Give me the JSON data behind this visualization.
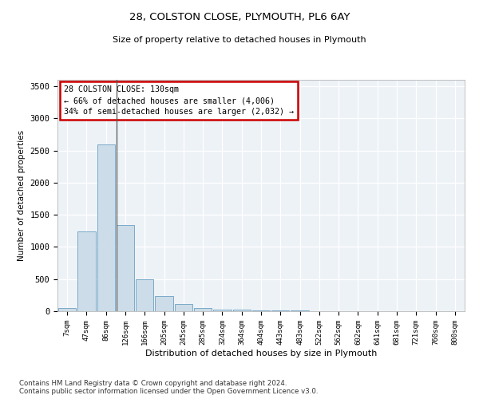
{
  "title1": "28, COLSTON CLOSE, PLYMOUTH, PL6 6AY",
  "title2": "Size of property relative to detached houses in Plymouth",
  "xlabel": "Distribution of detached houses by size in Plymouth",
  "ylabel": "Number of detached properties",
  "bar_color": "#ccdce8",
  "bar_edge_color": "#7aaac8",
  "background_color": "#edf2f7",
  "annotation_box_color": "#cc0000",
  "annotation_line1": "28 COLSTON CLOSE: 130sqm",
  "annotation_line2": "← 66% of detached houses are smaller (4,006)",
  "annotation_line3": "34% of semi-detached houses are larger (2,032) →",
  "footer1": "Contains HM Land Registry data © Crown copyright and database right 2024.",
  "footer2": "Contains public sector information licensed under the Open Government Licence v3.0.",
  "categories": [
    "7sqm",
    "47sqm",
    "86sqm",
    "126sqm",
    "166sqm",
    "205sqm",
    "245sqm",
    "285sqm",
    "324sqm",
    "364sqm",
    "404sqm",
    "443sqm",
    "483sqm",
    "522sqm",
    "562sqm",
    "602sqm",
    "641sqm",
    "681sqm",
    "721sqm",
    "760sqm",
    "800sqm"
  ],
  "values": [
    50,
    1240,
    2590,
    1340,
    500,
    240,
    115,
    55,
    30,
    20,
    15,
    10,
    8,
    5,
    3,
    3,
    2,
    2,
    2,
    2,
    2
  ],
  "ylim": [
    0,
    3600
  ],
  "yticks": [
    0,
    500,
    1000,
    1500,
    2000,
    2500,
    3000,
    3500
  ],
  "vline_x": 2.55
}
